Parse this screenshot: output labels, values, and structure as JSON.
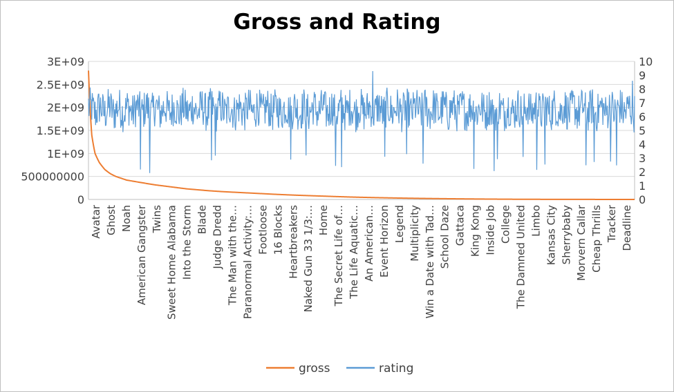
{
  "chart_data": {
    "type": "line",
    "title": "Gross and Rating",
    "xlabel": "",
    "y_left_label": "",
    "y_right_label": "",
    "y_left_ticks": [
      "0",
      "500000000",
      "1E+09",
      "1.5E+09",
      "2E+09",
      "2.5E+09",
      "3E+09"
    ],
    "y_left_range": [
      0,
      3000000000
    ],
    "y_right_ticks": [
      "0",
      "1",
      "2",
      "3",
      "4",
      "5",
      "6",
      "7",
      "8",
      "9",
      "10"
    ],
    "y_right_range": [
      0,
      10
    ],
    "x_tick_labels": [
      "Avatar",
      "Ghost",
      "Noah",
      "American Gangster",
      "Twins",
      "Sweet Home Alabama",
      "Into the Storm",
      "Blade",
      "Judge Dredd",
      "The Man with the…",
      "Paranormal Activity:…",
      "Footloose",
      "16 Blocks",
      "Heartbreakers",
      "Naked Gun 33 1/3:…",
      "Home",
      "The Secret Life of…",
      "The Life Aquatic…",
      "An American…",
      "Event Horizon",
      "Legend",
      "Multiplicity",
      "Win a Date with Tad…",
      "School Daze",
      "Gattaca",
      "King Kong",
      "Inside Job",
      "College",
      "The Damned United",
      "Limbo",
      "Kansas City",
      "Sherrybaby",
      "Morvern Callar",
      "Cheap Thrills",
      "Tracker",
      "Deadline"
    ],
    "grid": true,
    "legend_position": "bottom",
    "series": [
      {
        "name": "gross",
        "axis": "left",
        "color": "#ED7D31",
        "curve": {
          "count": 1000,
          "values": [
            2800000000,
            1400000000,
            1000000000,
            800000000,
            650000000,
            560000000,
            500000000,
            460000000,
            420000000,
            400000000,
            360000000,
            320000000,
            290000000,
            260000000,
            230000000,
            210000000,
            190000000,
            170000000,
            155000000,
            140000000,
            125000000,
            110000000,
            95000000,
            82000000,
            70000000,
            58000000,
            48000000,
            40000000,
            33000000,
            27000000,
            21000000,
            16000000,
            12000000,
            8000000,
            5000000,
            3000000,
            1500000,
            500000
          ],
          "at": [
            0,
            6,
            12,
            20,
            30,
            40,
            50,
            60,
            70,
            80,
            100,
            120,
            140,
            160,
            180,
            200,
            220,
            245,
            270,
            295,
            320,
            345,
            375,
            405,
            435,
            465,
            495,
            525,
            555,
            585,
            620,
            655,
            690,
            730,
            770,
            820,
            880,
            999
          ]
        }
      },
      {
        "name": "rating",
        "axis": "right",
        "color": "#5B9BD5",
        "summary": {
          "count": 1000,
          "typical_min": 5.0,
          "typical_max": 7.8,
          "mean": 6.5,
          "min": 1.9,
          "max": 9.3
        }
      }
    ]
  }
}
